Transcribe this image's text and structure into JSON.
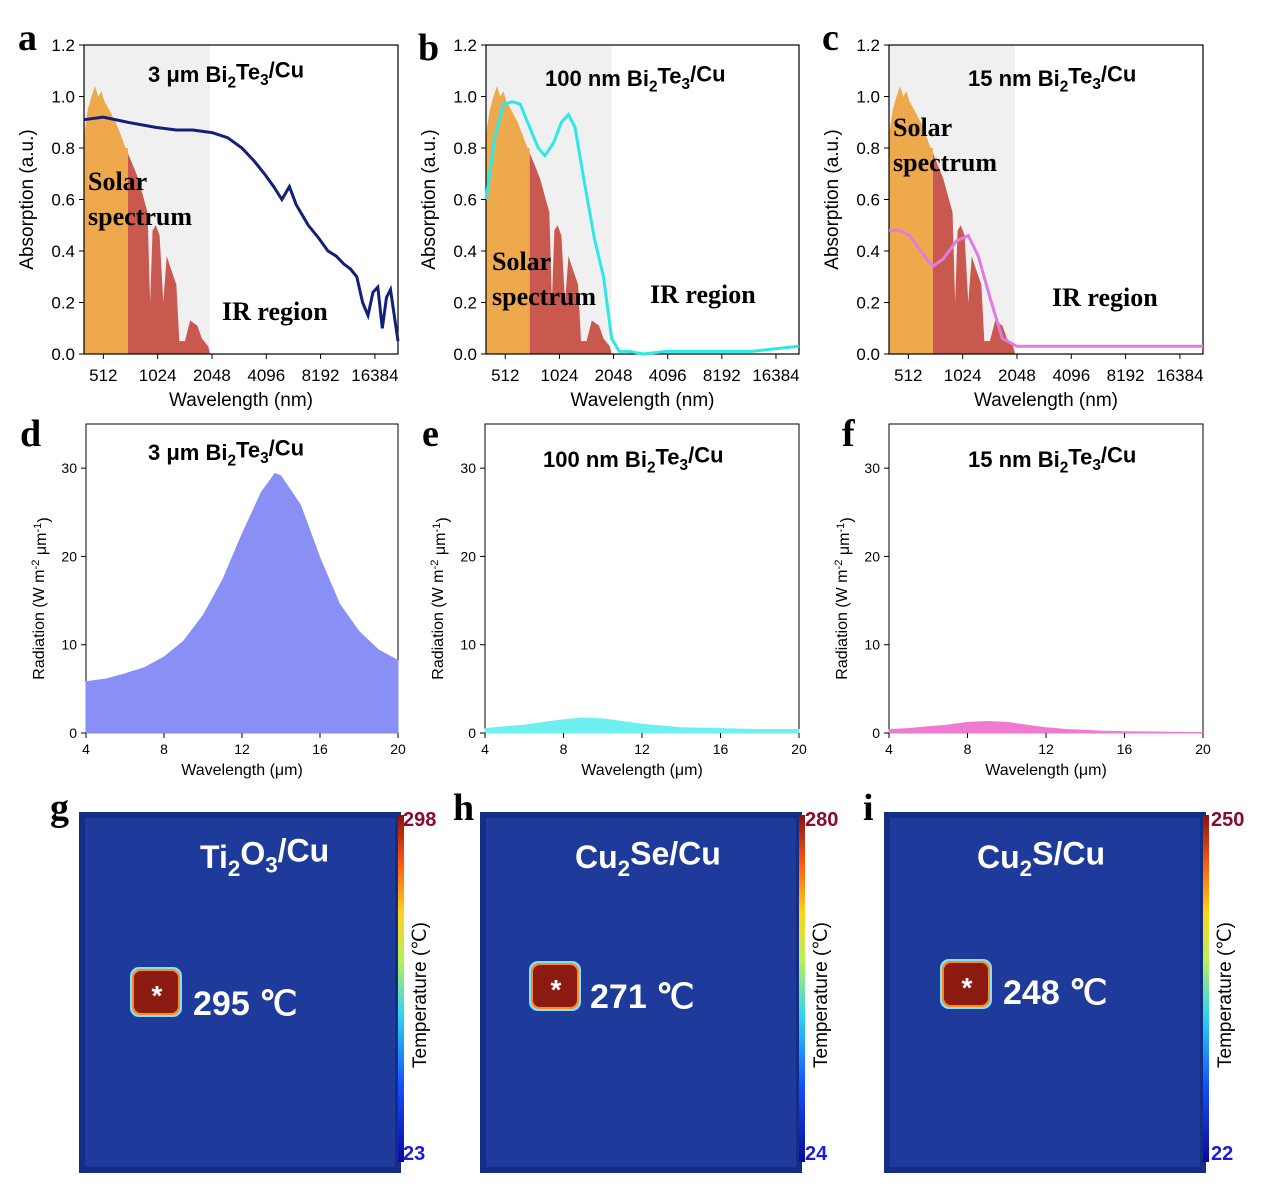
{
  "panel_labels": [
    "a",
    "b",
    "c",
    "d",
    "e",
    "f",
    "g",
    "h",
    "i"
  ],
  "absorption_panels": [
    {
      "title_parts": [
        "3 μm Bi",
        "2",
        "Te",
        "3",
        "/Cu"
      ],
      "solar_label": [
        "Solar",
        "spectrum"
      ],
      "ir_label": "IR region",
      "line_color": "#13207a"
    },
    {
      "title_parts": [
        "100 nm Bi",
        "2",
        "Te",
        "3",
        "/Cu"
      ],
      "solar_label": [
        "Solar",
        "spectrum"
      ],
      "ir_label": "IR region",
      "line_color": "#2ee8e8"
    },
    {
      "title_parts": [
        "15 nm Bi",
        "2",
        "Te",
        "3",
        "/Cu"
      ],
      "solar_label": [
        "Solar",
        "spectrum"
      ],
      "ir_label": "IR region",
      "line_color": "#e07be0"
    }
  ],
  "absorption_axes": {
    "xlabel": "Wavelength (nm)",
    "ylabel": "Absorption (a.u.)",
    "xticks": [
      "512",
      "1024",
      "2048",
      "4096",
      "8192",
      "16384"
    ],
    "yticks": [
      "0.0",
      "0.2",
      "0.4",
      "0.6",
      "0.8",
      "1.0",
      "1.2"
    ]
  },
  "radiation_panels": [
    {
      "title_parts": [
        "3 μm Bi",
        "2",
        "Te",
        "3",
        "/Cu"
      ],
      "fill_color": "#8a8ff5"
    },
    {
      "title_parts": [
        "100 nm Bi",
        "2",
        "Te",
        "3",
        "/Cu"
      ],
      "fill_color": "#6ef0f0"
    },
    {
      "title_parts": [
        "15 nm Bi",
        "2",
        "Te",
        "3",
        "/Cu"
      ],
      "fill_color": "#f07ad0"
    }
  ],
  "radiation_axes": {
    "xlabel": "Wavelength (μm)",
    "ylabel_parts": [
      "Radiation (W m",
      "-2",
      " μm",
      "-1",
      ")"
    ],
    "xticks": [
      "4",
      "8",
      "12",
      "16",
      "20"
    ],
    "yticks": [
      "0",
      "10",
      "20",
      "30"
    ]
  },
  "thermal_panels": [
    {
      "label_parts": [
        "Ti",
        "2",
        "O",
        "3",
        "/Cu"
      ],
      "temperature": "295 ℃",
      "cb_max": "298",
      "cb_min": "23",
      "marker": "*"
    },
    {
      "label_parts": [
        "Cu",
        "2",
        "Se/Cu"
      ],
      "temperature": "271 ℃",
      "cb_max": "280",
      "cb_min": "24",
      "marker": "*"
    },
    {
      "label_parts": [
        "Cu",
        "2",
        "S/Cu"
      ],
      "temperature": "248 ℃",
      "cb_max": "250",
      "cb_min": "22",
      "marker": "*"
    }
  ],
  "colorbar_label": "Temperature (℃)",
  "colors": {
    "solar_orange": "#eea94d",
    "solar_red": "#c9584f",
    "shade": "#f0f0f0",
    "thermal_bg": "#1e3a9a",
    "hot": "#8b1a10"
  },
  "chart_data": [
    {
      "type": "line",
      "panel": "a",
      "title": "3 μm Bi2Te3/Cu",
      "xlabel": "Wavelength (nm)",
      "ylabel": "Absorption (a.u.)",
      "xscale": "log2",
      "xlim": [
        400,
        22000
      ],
      "ylim": [
        0,
        1.2
      ],
      "series": [
        {
          "x": [
            400,
            512,
            700,
            1000,
            1300,
            1600,
            2048,
            2500,
            3000,
            3500,
            4000,
            4500,
            5000,
            5500,
            6000,
            7000,
            8000,
            9000,
            10000,
            11000,
            12000,
            13000,
            14000,
            15000,
            16000,
            17000,
            18000,
            19000,
            20000,
            22000
          ],
          "y": [
            0.91,
            0.92,
            0.9,
            0.88,
            0.87,
            0.87,
            0.86,
            0.84,
            0.8,
            0.75,
            0.7,
            0.65,
            0.6,
            0.65,
            0.58,
            0.5,
            0.45,
            0.4,
            0.38,
            0.35,
            0.33,
            0.3,
            0.2,
            0.15,
            0.24,
            0.26,
            0.1,
            0.22,
            0.25,
            0.05
          ]
        }
      ],
      "solar_spectrum_shaded_range_nm": [
        400,
        2000
      ]
    },
    {
      "type": "line",
      "panel": "b",
      "title": "100 nm Bi2Te3/Cu",
      "xlabel": "Wavelength (nm)",
      "ylabel": "Absorption (a.u.)",
      "xscale": "log2",
      "xlim": [
        400,
        22000
      ],
      "ylim": [
        0,
        1.2
      ],
      "series": [
        {
          "x": [
            400,
            450,
            500,
            560,
            620,
            700,
            780,
            850,
            950,
            1050,
            1150,
            1250,
            1400,
            1600,
            1800,
            2000,
            2200,
            2500,
            3000,
            4000,
            6000,
            8000,
            12000,
            16000,
            22000
          ],
          "y": [
            0.6,
            0.85,
            0.97,
            0.98,
            0.97,
            0.88,
            0.8,
            0.77,
            0.82,
            0.9,
            0.93,
            0.88,
            0.68,
            0.45,
            0.3,
            0.06,
            0.01,
            0.01,
            0.0,
            0.01,
            0.01,
            0.01,
            0.01,
            0.02,
            0.03
          ]
        }
      ],
      "solar_spectrum_shaded_range_nm": [
        400,
        2000
      ]
    },
    {
      "type": "line",
      "panel": "c",
      "title": "15 nm Bi2Te3/Cu",
      "xlabel": "Wavelength (nm)",
      "ylabel": "Absorption (a.u.)",
      "xscale": "log2",
      "xlim": [
        400,
        22000
      ],
      "ylim": [
        0,
        1.2
      ],
      "series": [
        {
          "x": [
            400,
            460,
            520,
            600,
            700,
            800,
            950,
            1100,
            1250,
            1450,
            1700,
            2048,
            2500,
            4000,
            8000,
            16000,
            22000
          ],
          "y": [
            0.48,
            0.48,
            0.46,
            0.4,
            0.34,
            0.37,
            0.44,
            0.46,
            0.38,
            0.22,
            0.06,
            0.03,
            0.03,
            0.03,
            0.03,
            0.03,
            0.03
          ]
        }
      ],
      "solar_spectrum_shaded_range_nm": [
        400,
        2000
      ]
    },
    {
      "type": "area",
      "panel": "d",
      "title": "3 μm Bi2Te3/Cu",
      "xlabel": "Wavelength (μm)",
      "ylabel": "Radiation (W m-2 μm-1)",
      "xlim": [
        4,
        20
      ],
      "ylim": [
        0,
        35
      ],
      "series": [
        {
          "x": [
            4,
            5,
            6,
            7,
            8,
            9,
            10,
            11,
            12,
            13,
            13.7,
            14,
            15,
            16,
            17,
            18,
            19,
            20
          ],
          "y": [
            5.8,
            6.1,
            6.7,
            7.4,
            8.6,
            10.4,
            13.3,
            17.3,
            22.5,
            27.3,
            29.4,
            29.1,
            25.8,
            19.8,
            14.6,
            11.5,
            9.4,
            8.2
          ]
        }
      ]
    },
    {
      "type": "area",
      "panel": "e",
      "title": "100 nm Bi2Te3/Cu",
      "xlabel": "Wavelength (μm)",
      "ylabel": "Radiation (W m-2 μm-1)",
      "xlim": [
        4,
        20
      ],
      "ylim": [
        0,
        35
      ],
      "series": [
        {
          "x": [
            4,
            5,
            6,
            7,
            8,
            9,
            10,
            11,
            12,
            13,
            14,
            16,
            18,
            20
          ],
          "y": [
            0.5,
            0.7,
            0.9,
            1.2,
            1.5,
            1.7,
            1.6,
            1.3,
            1.0,
            0.8,
            0.6,
            0.5,
            0.4,
            0.4
          ]
        }
      ]
    },
    {
      "type": "area",
      "panel": "f",
      "title": "15 nm Bi2Te3/Cu",
      "xlabel": "Wavelength (μm)",
      "ylabel": "Radiation (W m-2 μm-1)",
      "xlim": [
        4,
        20
      ],
      "ylim": [
        0,
        35
      ],
      "series": [
        {
          "x": [
            4,
            5,
            6,
            7,
            8,
            9,
            10,
            11,
            12,
            13,
            14,
            15,
            16,
            18,
            20
          ],
          "y": [
            0.4,
            0.5,
            0.7,
            0.9,
            1.2,
            1.3,
            1.2,
            0.9,
            0.6,
            0.4,
            0.3,
            0.2,
            0.15,
            0.1,
            0.05
          ]
        }
      ]
    }
  ]
}
